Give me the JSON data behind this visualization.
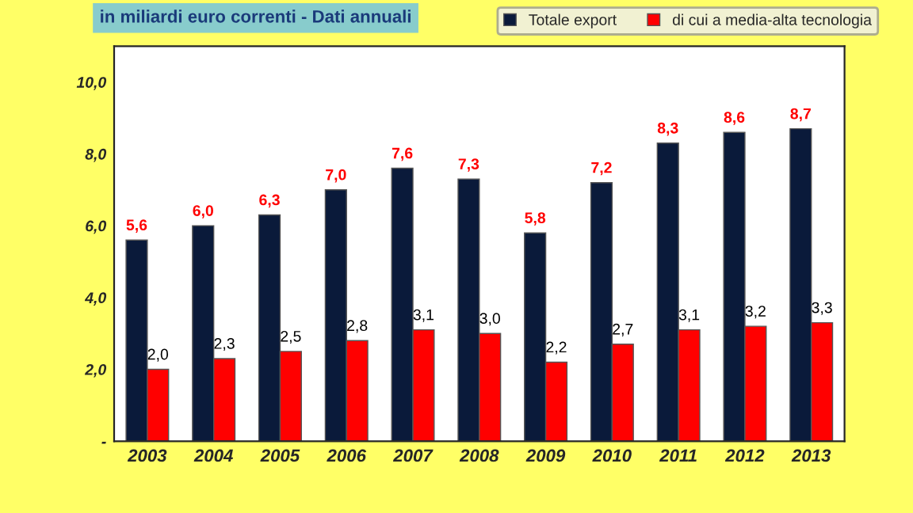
{
  "chart_data": {
    "type": "bar",
    "title": "in miliardi euro correnti - Dati annuali",
    "categories": [
      "2003",
      "2004",
      "2005",
      "2006",
      "2007",
      "2008",
      "2009",
      "2010",
      "2011",
      "2012",
      "2013"
    ],
    "series": [
      {
        "name": "Totale export",
        "color": "#0a1a3a",
        "values": [
          5.6,
          6.0,
          6.3,
          7.0,
          7.6,
          7.3,
          5.8,
          7.2,
          8.3,
          8.6,
          8.7
        ],
        "value_labels": [
          "5,6",
          "6,0",
          "6,3",
          "7,0",
          "7,6",
          "7,3",
          "5,8",
          "7,2",
          "8,3",
          "8,6",
          "8,7"
        ]
      },
      {
        "name": "di cui a media-alta tecnologia",
        "color": "#ff0000",
        "values": [
          2.0,
          2.3,
          2.5,
          2.8,
          3.1,
          3.0,
          2.2,
          2.7,
          3.1,
          3.2,
          3.3
        ],
        "value_labels": [
          "2,0",
          "2,3",
          "2,5",
          "2,8",
          "3,1",
          "3,0",
          "2,2",
          "2,7",
          "3,1",
          "3,2",
          "3,3"
        ]
      }
    ],
    "ylim": [
      0,
      11
    ],
    "yticks": [
      {
        "value": 0,
        "label": "-"
      },
      {
        "value": 2,
        "label": "2,0"
      },
      {
        "value": 4,
        "label": "4,0"
      },
      {
        "value": 6,
        "label": "6,0"
      },
      {
        "value": 8,
        "label": "8,0"
      },
      {
        "value": 10,
        "label": "10,0"
      }
    ],
    "legend": "top right",
    "grid": false
  }
}
